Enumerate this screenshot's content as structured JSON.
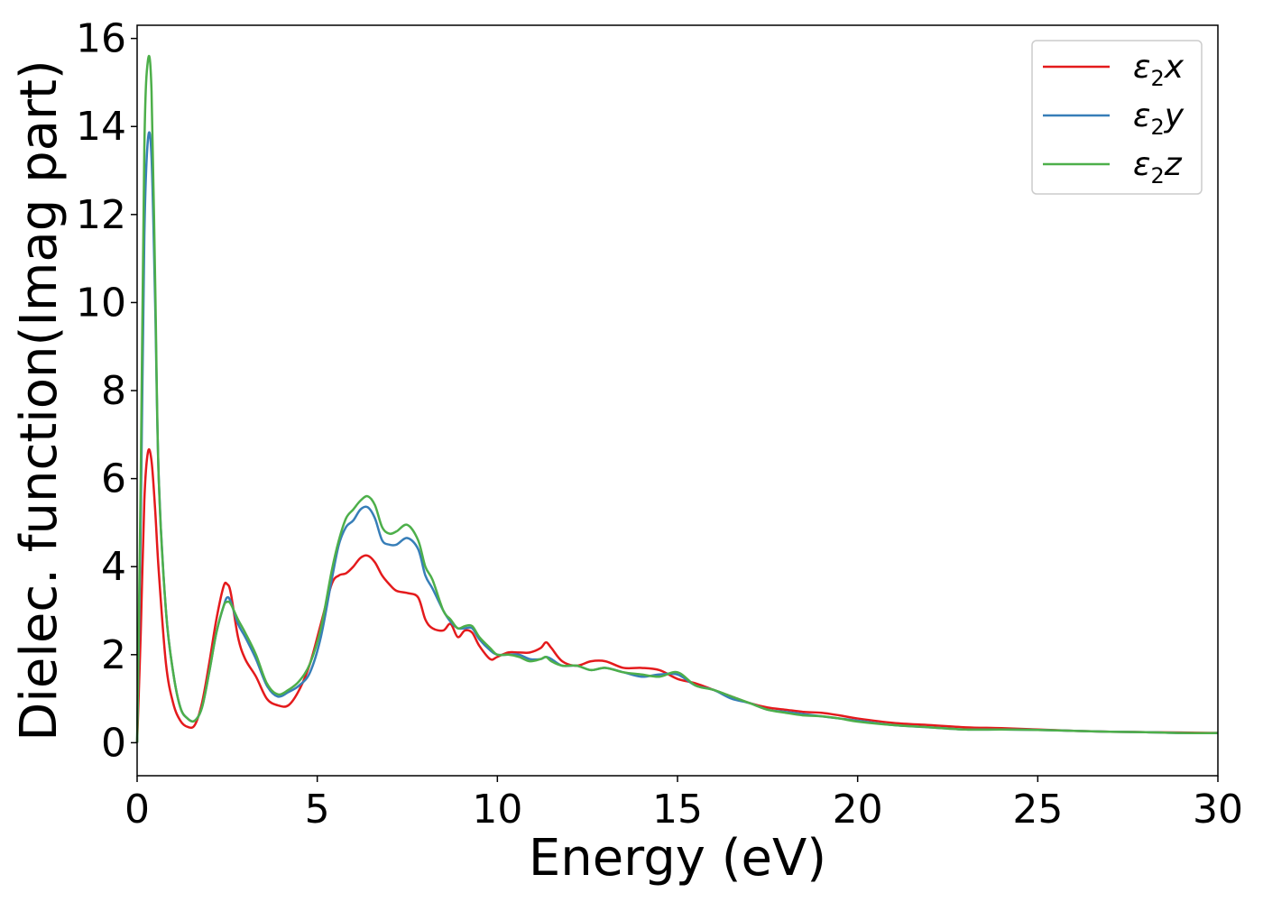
{
  "chart_data": {
    "type": "line",
    "xlabel": "Energy (eV)",
    "ylabel": "Dielec. function(Imag part)",
    "xlim": [
      0,
      30
    ],
    "ylim": [
      -0.75,
      16.3
    ],
    "xticks": [
      0,
      5,
      10,
      15,
      20,
      25,
      30
    ],
    "yticks": [
      0,
      2,
      4,
      6,
      8,
      10,
      12,
      14,
      16
    ],
    "grid": false,
    "legend_position": "top-right",
    "series": [
      {
        "name": "ε2x",
        "legend": {
          "base": "ε",
          "sub": "2",
          "suffix": "x"
        },
        "color": "#e41a1c",
        "x": [
          0,
          0.1,
          0.2,
          0.3,
          0.4,
          0.5,
          0.6,
          0.8,
          1.0,
          1.2,
          1.4,
          1.6,
          1.8,
          2.0,
          2.2,
          2.4,
          2.5,
          2.6,
          2.8,
          3.0,
          3.3,
          3.6,
          3.9,
          4.2,
          4.5,
          4.8,
          5.1,
          5.4,
          5.6,
          5.8,
          6.0,
          6.2,
          6.4,
          6.6,
          6.8,
          7.0,
          7.2,
          7.5,
          7.8,
          8.0,
          8.2,
          8.5,
          8.7,
          8.9,
          9.1,
          9.3,
          9.5,
          9.8,
          10.0,
          10.3,
          10.6,
          10.9,
          11.2,
          11.35,
          11.5,
          11.8,
          12.2,
          12.6,
          13.0,
          13.5,
          14.0,
          14.5,
          15.0,
          15.5,
          16.0,
          16.5,
          17.0,
          17.5,
          18.0,
          18.5,
          19.0,
          19.5,
          20.0,
          21.0,
          22.0,
          23.0,
          24.0,
          25.0,
          26.0,
          27.0,
          28.0,
          29.0,
          30.0
        ],
        "y": [
          0.0,
          2.5,
          5.5,
          6.6,
          6.4,
          5.3,
          3.9,
          1.8,
          0.9,
          0.5,
          0.36,
          0.4,
          0.9,
          1.8,
          2.8,
          3.55,
          3.6,
          3.4,
          2.4,
          1.9,
          1.5,
          1.0,
          0.85,
          0.85,
          1.2,
          1.8,
          2.7,
          3.6,
          3.8,
          3.85,
          4.0,
          4.2,
          4.25,
          4.1,
          3.8,
          3.6,
          3.45,
          3.4,
          3.3,
          2.8,
          2.6,
          2.55,
          2.7,
          2.4,
          2.55,
          2.5,
          2.2,
          1.9,
          1.95,
          2.05,
          2.05,
          2.05,
          2.15,
          2.28,
          2.15,
          1.85,
          1.75,
          1.85,
          1.85,
          1.7,
          1.7,
          1.65,
          1.45,
          1.35,
          1.2,
          1.05,
          0.9,
          0.8,
          0.75,
          0.7,
          0.68,
          0.62,
          0.55,
          0.45,
          0.4,
          0.35,
          0.33,
          0.3,
          0.27,
          0.25,
          0.24,
          0.23,
          0.22
        ]
      },
      {
        "name": "ε2y",
        "legend": {
          "base": "ε",
          "sub": "2",
          "suffix": "y"
        },
        "color": "#377eb8",
        "x": [
          0,
          0.1,
          0.2,
          0.3,
          0.4,
          0.5,
          0.6,
          0.8,
          1.0,
          1.2,
          1.4,
          1.6,
          1.8,
          2.0,
          2.2,
          2.4,
          2.5,
          2.6,
          2.8,
          3.0,
          3.3,
          3.6,
          3.9,
          4.2,
          4.5,
          4.8,
          5.1,
          5.4,
          5.6,
          5.8,
          6.0,
          6.2,
          6.4,
          6.6,
          6.8,
          7.0,
          7.2,
          7.5,
          7.8,
          8.0,
          8.2,
          8.5,
          8.7,
          8.9,
          9.1,
          9.3,
          9.5,
          9.8,
          10.0,
          10.3,
          10.6,
          10.9,
          11.2,
          11.35,
          11.5,
          11.8,
          12.2,
          12.6,
          13.0,
          13.5,
          14.0,
          14.5,
          15.0,
          15.5,
          16.0,
          16.5,
          17.0,
          17.5,
          18.0,
          18.5,
          19.0,
          19.5,
          20.0,
          21.0,
          22.0,
          23.0,
          24.0,
          25.0,
          26.0,
          27.0,
          28.0,
          29.0,
          30.0
        ],
        "y": [
          0.0,
          5.0,
          11.5,
          13.7,
          13.3,
          10.0,
          6.0,
          3.0,
          1.6,
          0.8,
          0.55,
          0.5,
          0.8,
          1.6,
          2.5,
          3.1,
          3.3,
          3.2,
          2.7,
          2.4,
          1.9,
          1.3,
          1.05,
          1.15,
          1.3,
          1.6,
          2.4,
          3.7,
          4.5,
          4.9,
          5.05,
          5.3,
          5.35,
          5.1,
          4.6,
          4.5,
          4.5,
          4.65,
          4.4,
          3.8,
          3.5,
          3.0,
          2.75,
          2.6,
          2.6,
          2.6,
          2.35,
          2.1,
          2.0,
          2.0,
          2.0,
          1.9,
          1.9,
          1.95,
          1.9,
          1.75,
          1.75,
          1.65,
          1.7,
          1.6,
          1.5,
          1.55,
          1.55,
          1.3,
          1.2,
          1.0,
          0.9,
          0.75,
          0.7,
          0.65,
          0.6,
          0.55,
          0.5,
          0.4,
          0.35,
          0.3,
          0.3,
          0.29,
          0.27,
          0.25,
          0.24,
          0.22,
          0.22
        ]
      },
      {
        "name": "ε2z",
        "legend": {
          "base": "ε",
          "sub": "2",
          "suffix": "z"
        },
        "color": "#4daf4a",
        "x": [
          0,
          0.1,
          0.2,
          0.3,
          0.4,
          0.5,
          0.6,
          0.8,
          1.0,
          1.2,
          1.4,
          1.6,
          1.8,
          2.0,
          2.2,
          2.4,
          2.5,
          2.6,
          2.8,
          3.0,
          3.3,
          3.6,
          3.9,
          4.2,
          4.5,
          4.8,
          5.1,
          5.4,
          5.6,
          5.8,
          6.0,
          6.2,
          6.4,
          6.6,
          6.8,
          7.0,
          7.2,
          7.5,
          7.8,
          8.0,
          8.2,
          8.5,
          8.7,
          8.9,
          9.1,
          9.3,
          9.5,
          9.8,
          10.0,
          10.3,
          10.6,
          10.9,
          11.2,
          11.35,
          11.5,
          11.8,
          12.2,
          12.6,
          13.0,
          13.5,
          14.0,
          14.5,
          15.0,
          15.5,
          16.0,
          16.5,
          17.0,
          17.5,
          18.0,
          18.5,
          19.0,
          19.5,
          20.0,
          21.0,
          22.0,
          23.0,
          24.0,
          25.0,
          26.0,
          27.0,
          28.0,
          29.0,
          30.0
        ],
        "y": [
          0.0,
          6.0,
          13.5,
          15.5,
          14.8,
          10.5,
          6.0,
          3.0,
          1.6,
          0.8,
          0.55,
          0.5,
          0.8,
          1.6,
          2.5,
          3.1,
          3.2,
          3.15,
          2.8,
          2.5,
          2.0,
          1.35,
          1.1,
          1.2,
          1.4,
          1.8,
          2.6,
          3.9,
          4.6,
          5.1,
          5.3,
          5.5,
          5.6,
          5.4,
          4.9,
          4.75,
          4.8,
          4.95,
          4.6,
          4.0,
          3.7,
          3.0,
          2.8,
          2.6,
          2.65,
          2.65,
          2.4,
          2.15,
          2.0,
          2.0,
          1.95,
          1.85,
          1.9,
          1.95,
          1.85,
          1.75,
          1.75,
          1.65,
          1.7,
          1.6,
          1.55,
          1.5,
          1.6,
          1.3,
          1.2,
          1.05,
          0.9,
          0.75,
          0.68,
          0.62,
          0.6,
          0.55,
          0.48,
          0.4,
          0.35,
          0.3,
          0.3,
          0.29,
          0.27,
          0.25,
          0.24,
          0.22,
          0.22
        ]
      }
    ]
  }
}
